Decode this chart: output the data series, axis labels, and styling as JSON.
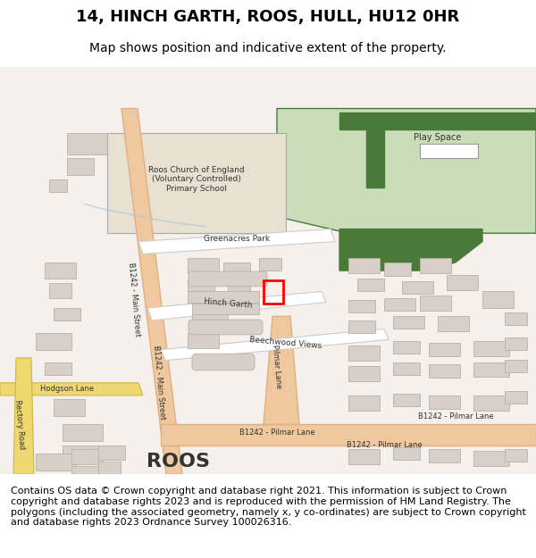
{
  "title": "14, HINCH GARTH, ROOS, HULL, HU12 0HR",
  "subtitle": "Map shows position and indicative extent of the property.",
  "copyright_text": "Contains OS data © Crown copyright and database right 2021. This information is subject to Crown copyright and database rights 2023 and is reproduced with the permission of HM Land Registry. The polygons (including the associated geometry, namely x, y co-ordinates) are subject to Crown copyright and database rights 2023 Ordnance Survey 100026316.",
  "bg_color": "#ffffff",
  "map_bg": "#f5f0eb",
  "road_main_color": "#f0c8a0",
  "road_minor_color": "#e8e8e8",
  "road_outline_color": "#cccccc",
  "building_color": "#d8d0c8",
  "building_outline": "#b8b0a8",
  "green_area_color": "#c8ddb8",
  "green_dark_color": "#4a7a3a",
  "school_color": "#e8e0d0",
  "highlight_color": "#ff0000",
  "water_color": "#b8d8e8",
  "yellow_road": "#f0d870",
  "text_color": "#000000",
  "title_fontsize": 13,
  "subtitle_fontsize": 10,
  "copyright_fontsize": 8
}
